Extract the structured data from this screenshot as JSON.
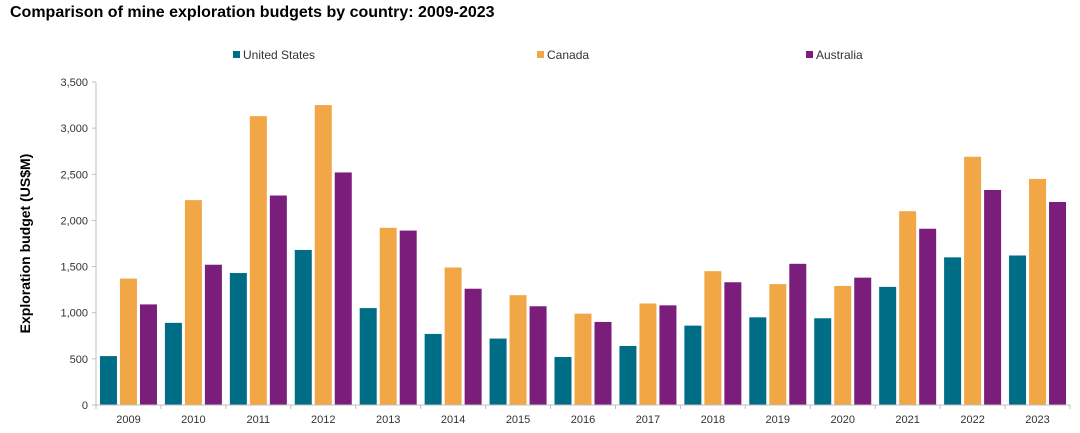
{
  "chart_data": {
    "type": "bar",
    "title": "Comparison of mine exploration budgets by country: 2009-2023",
    "xlabel": "",
    "ylabel": "Exploration budget (US$M)",
    "ylim": [
      0,
      3500
    ],
    "yticks": [
      "0",
      "500",
      "1,000",
      "1,500",
      "2,000",
      "2,500",
      "3,000",
      "3,500"
    ],
    "categories": [
      "2009",
      "2010",
      "2011",
      "2012",
      "2013",
      "2014",
      "2015",
      "2016",
      "2017",
      "2018",
      "2019",
      "2020",
      "2021",
      "2022",
      "2023"
    ],
    "series": [
      {
        "name": "United States",
        "color": "#006d86",
        "values": [
          530,
          890,
          1430,
          1680,
          1050,
          770,
          720,
          520,
          640,
          860,
          950,
          940,
          1280,
          1600,
          1620
        ]
      },
      {
        "name": "Canada",
        "color": "#f2a746",
        "values": [
          1370,
          2220,
          3130,
          3250,
          1920,
          1490,
          1190,
          990,
          1100,
          1450,
          1310,
          1290,
          2100,
          2690,
          2450
        ]
      },
      {
        "name": "Australia",
        "color": "#7b1e7b",
        "values": [
          1090,
          1520,
          2270,
          2520,
          1890,
          1260,
          1070,
          900,
          1080,
          1330,
          1530,
          1380,
          1910,
          2330,
          2200
        ]
      }
    ],
    "grid": false,
    "legend_position": "top"
  }
}
